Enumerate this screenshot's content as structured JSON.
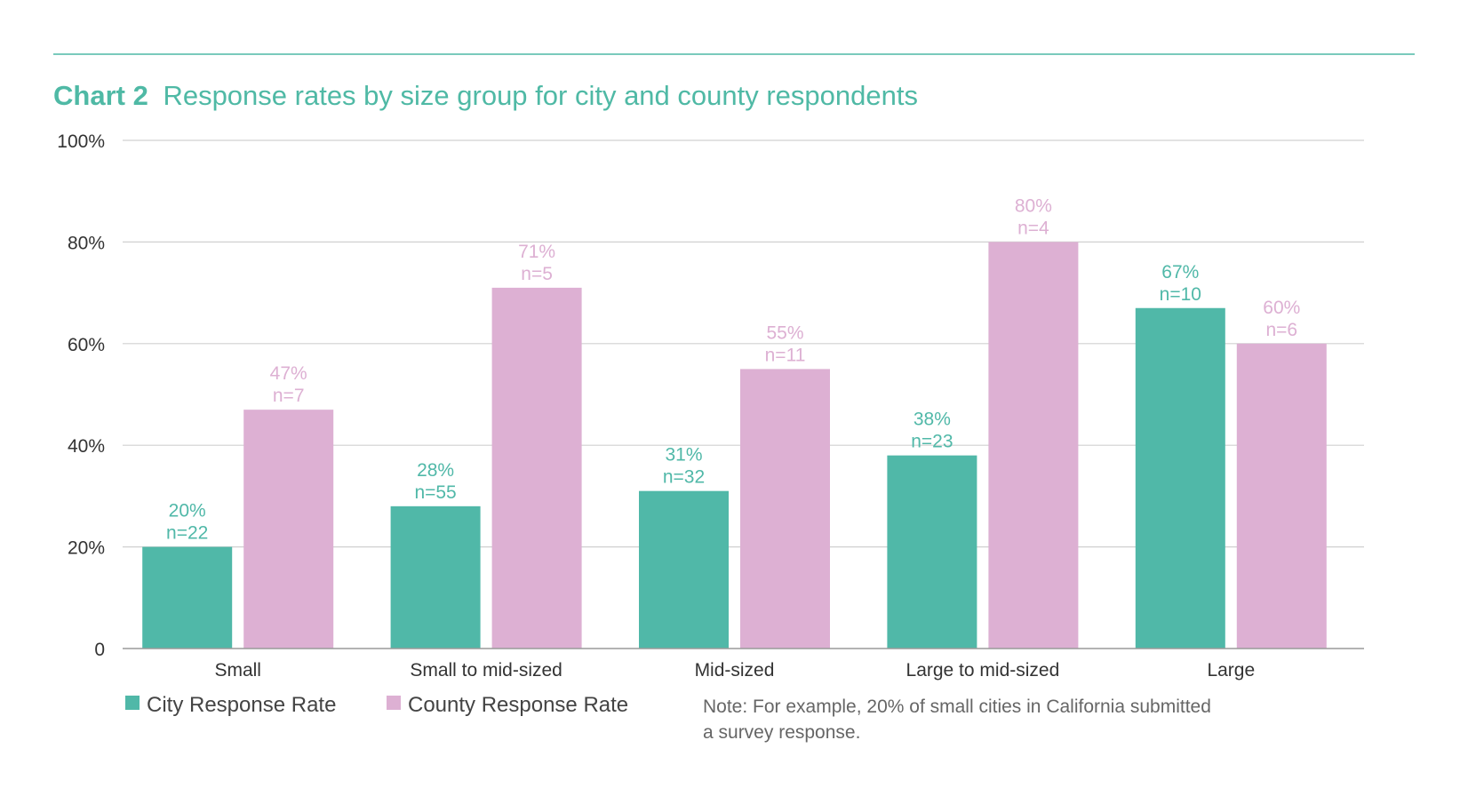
{
  "chart_data": {
    "type": "bar",
    "title_prefix": "Chart 2",
    "title": "Response rates by size group for city and county respondents",
    "categories": [
      "Small",
      "Small to mid-sized",
      "Mid-sized",
      "Large to mid-sized",
      "Large"
    ],
    "series": [
      {
        "name": "City Response Rate",
        "color": "#50b8a8",
        "values": [
          20,
          28,
          31,
          38,
          67
        ],
        "value_labels": [
          "20%",
          "28%",
          "31%",
          "38%",
          "67%"
        ],
        "n_labels": [
          "n=22",
          "n=55",
          "n=32",
          "n=23",
          "n=10"
        ]
      },
      {
        "name": "County Response Rate",
        "color": "#ddb0d3",
        "values": [
          47,
          71,
          55,
          80,
          60
        ],
        "value_labels": [
          "47%",
          "71%",
          "55%",
          "80%",
          "60%"
        ],
        "n_labels": [
          "n=7",
          "n=5",
          "n=11",
          "n=4",
          "n=6"
        ]
      }
    ],
    "ylim": [
      0,
      100
    ],
    "yticks": [
      0,
      20,
      40,
      60,
      80,
      100
    ],
    "ytick_labels": [
      "0",
      "20%",
      "40%",
      "60%",
      "80%",
      "100%"
    ],
    "grid": true,
    "legend_position": "bottom-left",
    "note_line1": "Note: For example, 20% of small cities in California submitted",
    "note_line2": "a survey response.",
    "accent_color": "#4fb9a5",
    "grid_color": "#d0d0d0",
    "text_color": "#333333",
    "note_color": "#666666"
  }
}
